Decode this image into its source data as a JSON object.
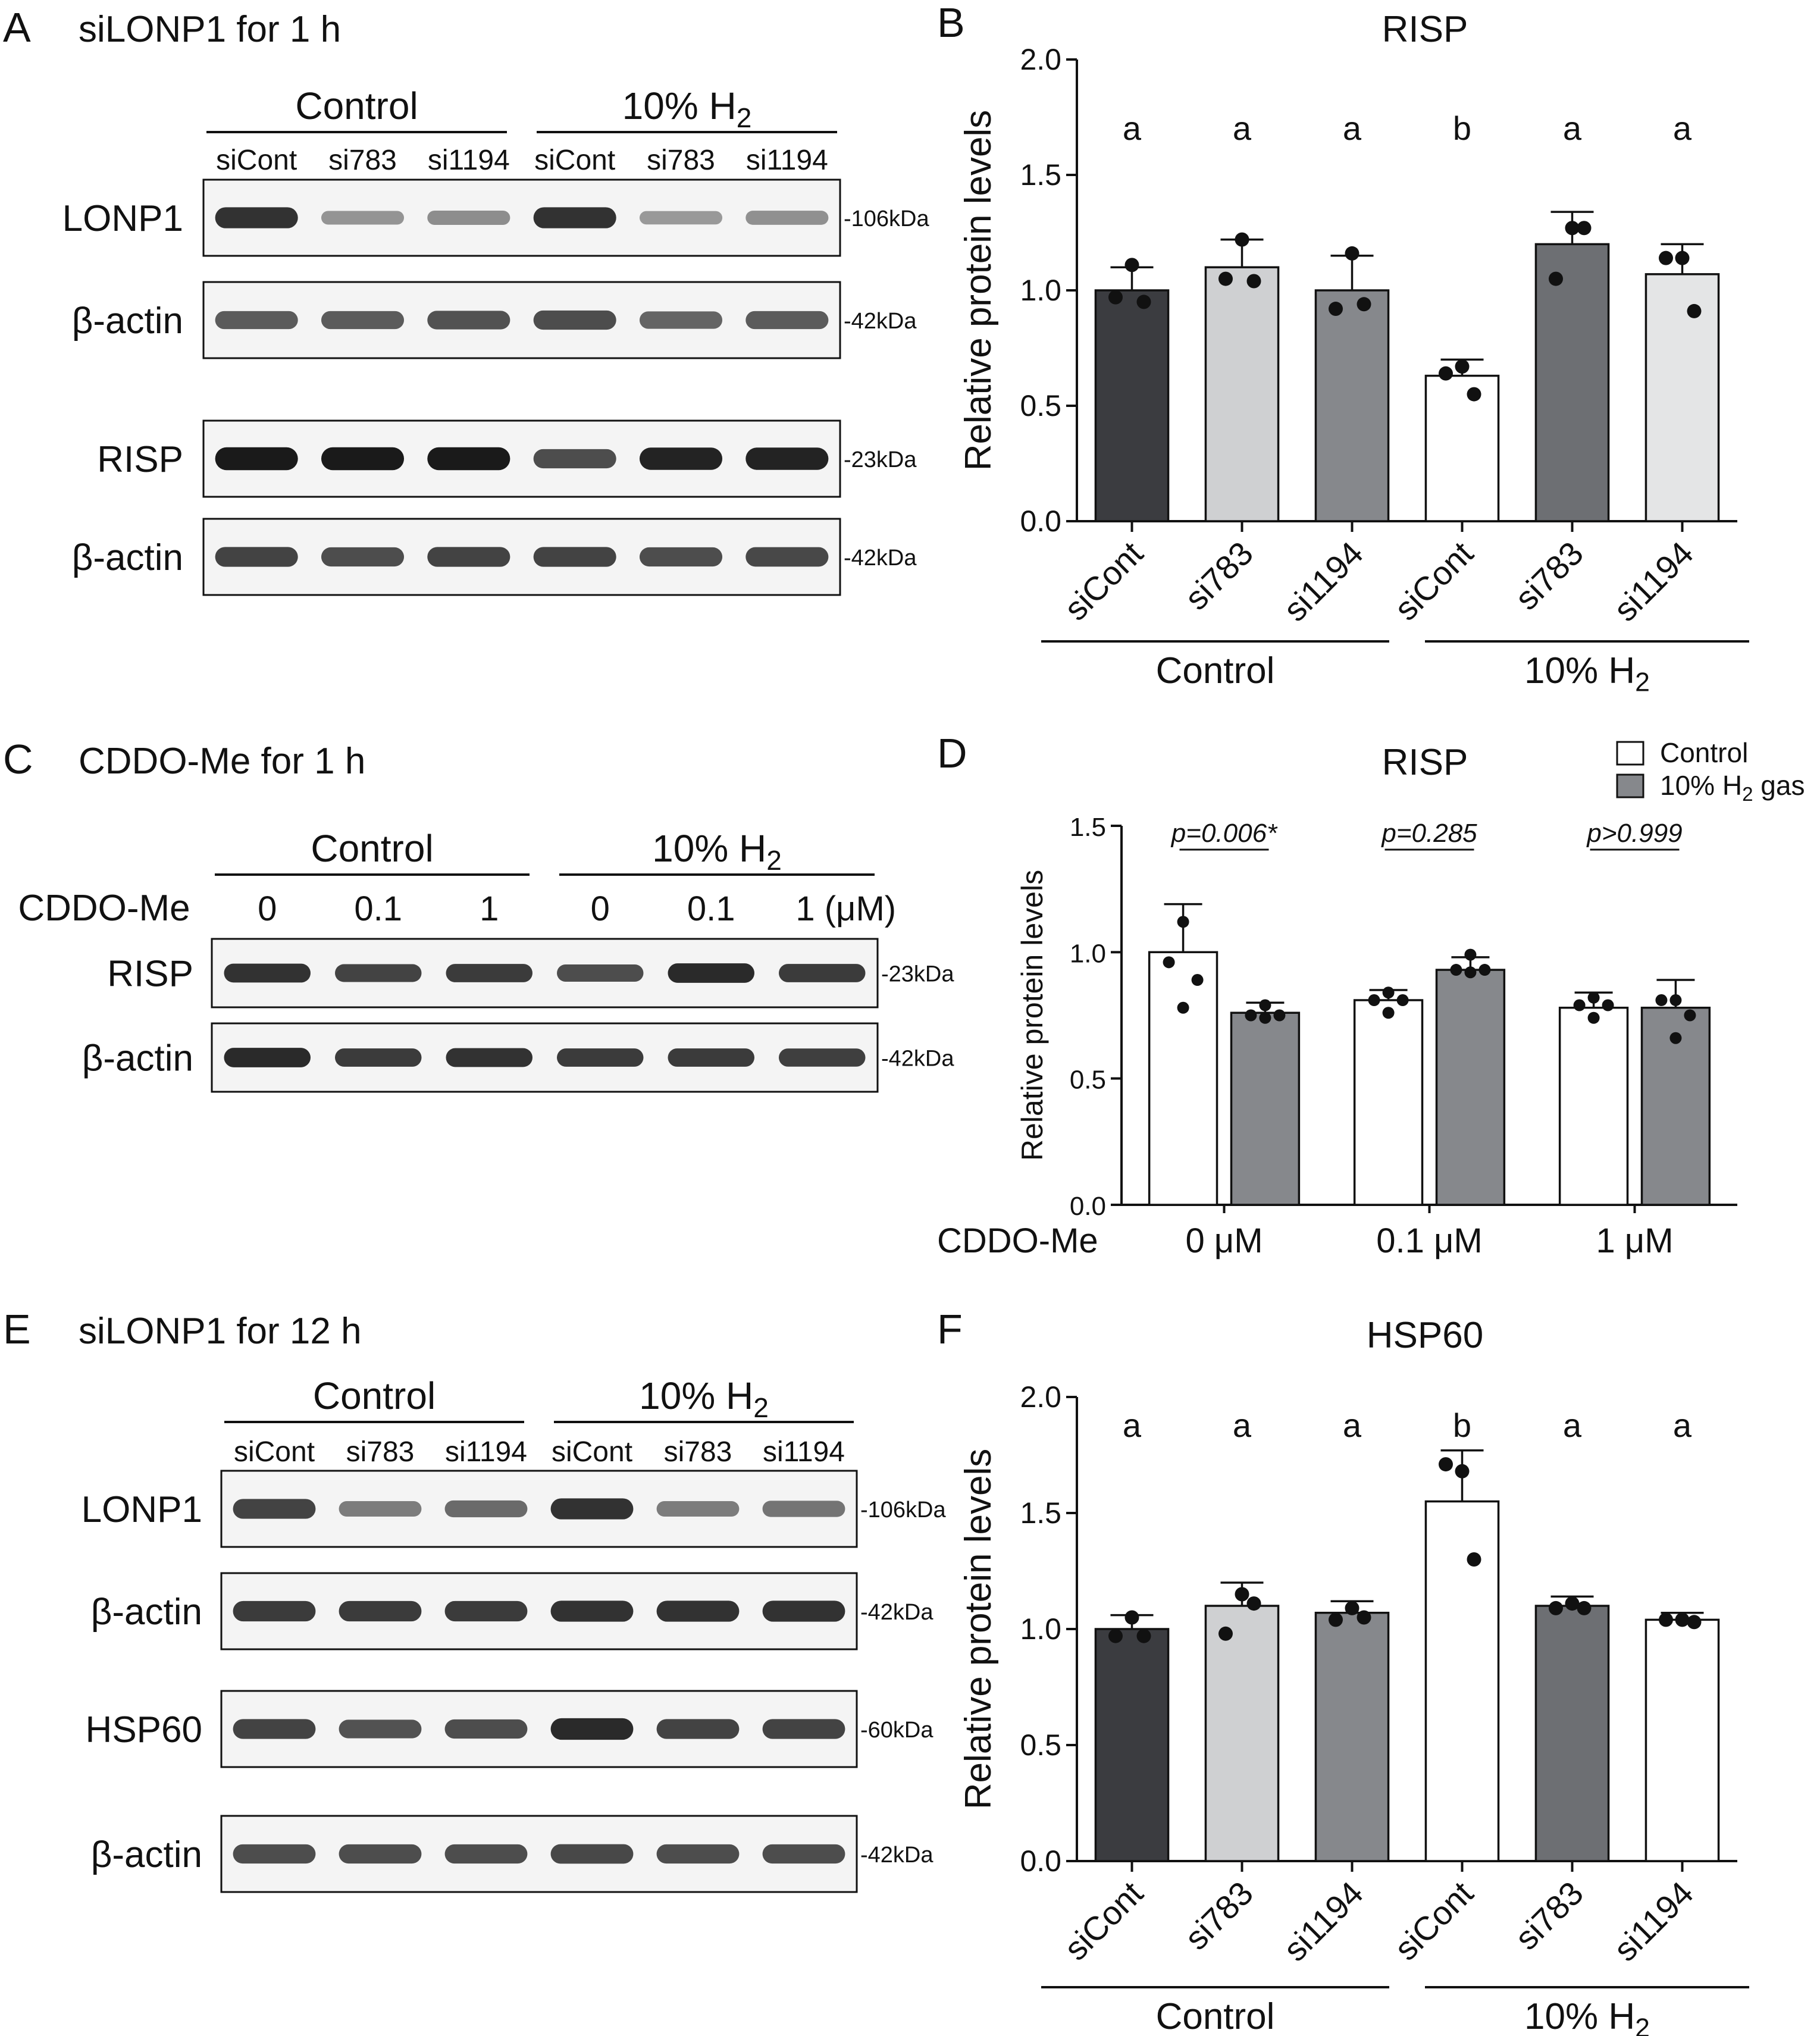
{
  "colors": {
    "black": "#111111",
    "bar_dark": "#3b3c40",
    "bar_light_gray": "#cfd0d2",
    "bar_mid_gray": "#86888c",
    "bar_white": "#ffffff",
    "bar_steel": "#6d6f73",
    "bar_pale": "#e4e5e6",
    "blot_bg": "#f4f4f4",
    "band": "#1a1a1a"
  },
  "panels": {
    "A": {
      "letter": "A",
      "title": "siLONP1 for 1 h",
      "groups": [
        "Control",
        "10% H",
        "2"
      ],
      "lanes": [
        "siCont",
        "si783",
        "si1194",
        "siCont",
        "si783",
        "si1194"
      ],
      "blots": [
        {
          "label": "LONP1",
          "marker": "-106kDa",
          "intensity": [
            0.85,
            0.25,
            0.3,
            0.85,
            0.22,
            0.28
          ]
        },
        {
          "label": "β-actin",
          "marker": "-42kDa",
          "intensity": [
            0.6,
            0.6,
            0.65,
            0.7,
            0.55,
            0.6
          ]
        },
        {
          "label": "RISP",
          "marker": "-23kDa",
          "intensity": [
            1.0,
            1.0,
            1.0,
            0.7,
            0.95,
            0.95
          ]
        },
        {
          "label": "β-actin",
          "marker": "-42kDa",
          "intensity": [
            0.75,
            0.7,
            0.75,
            0.75,
            0.7,
            0.72
          ]
        }
      ]
    },
    "C": {
      "letter": "C",
      "title": "CDDO-Me for 1 h",
      "groups": [
        "Control",
        "10% H",
        "2"
      ],
      "treatment_label": "CDDO-Me",
      "concentrations": [
        "0",
        "0.1",
        "1",
        "0",
        "0.1",
        "1 (μM)"
      ],
      "blots": [
        {
          "label": "RISP",
          "marker": "-23kDa",
          "intensity": [
            0.85,
            0.75,
            0.8,
            0.7,
            0.9,
            0.8
          ]
        },
        {
          "label": "β-actin",
          "marker": "-42kDa",
          "intensity": [
            0.9,
            0.8,
            0.85,
            0.8,
            0.8,
            0.78
          ]
        }
      ]
    },
    "E": {
      "letter": "E",
      "title": "siLONP1 for 12 h",
      "groups": [
        "Control",
        "10% H",
        "2"
      ],
      "lanes": [
        "siCont",
        "si783",
        "si1194",
        "siCont",
        "si783",
        "si1194"
      ],
      "blots": [
        {
          "label": "LONP1",
          "marker": "-106kDa",
          "intensity": [
            0.75,
            0.4,
            0.5,
            0.85,
            0.4,
            0.45
          ]
        },
        {
          "label": "β-actin",
          "marker": "-42kDa",
          "intensity": [
            0.8,
            0.8,
            0.8,
            0.85,
            0.85,
            0.85
          ]
        },
        {
          "label": "HSP60",
          "marker": "-60kDa",
          "intensity": [
            0.75,
            0.65,
            0.7,
            0.9,
            0.75,
            0.75
          ]
        },
        {
          "label": "β-actin",
          "marker": "-42kDa",
          "intensity": [
            0.7,
            0.7,
            0.7,
            0.72,
            0.7,
            0.7
          ]
        }
      ]
    }
  },
  "chart_data": [
    {
      "panel": "B",
      "type": "bar",
      "title": "RISP",
      "ylabel": "Relative protein levels",
      "ylim": [
        0,
        2.0
      ],
      "yticks": [
        "0.0",
        "0.5",
        "1.0",
        "1.5",
        "2.0"
      ],
      "categories": [
        "siCont",
        "si783",
        "si1194",
        "siCont",
        "si783",
        "si1194"
      ],
      "groups": [
        "Control",
        "10% H",
        "2"
      ],
      "values": [
        1.0,
        1.1,
        1.0,
        0.63,
        1.2,
        1.07
      ],
      "errors": [
        0.1,
        0.12,
        0.15,
        0.07,
        0.14,
        0.13
      ],
      "points": [
        [
          1.11,
          0.97,
          0.95
        ],
        [
          1.22,
          1.05,
          1.04
        ],
        [
          1.16,
          0.92,
          0.94
        ],
        [
          0.67,
          0.64,
          0.55
        ],
        [
          1.27,
          1.05,
          1.27
        ],
        [
          1.14,
          1.14,
          0.91
        ]
      ],
      "letters": [
        "a",
        "a",
        "a",
        "b",
        "a",
        "a"
      ],
      "colors": [
        "#3b3c40",
        "#cfd0d2",
        "#86888c",
        "#ffffff",
        "#6d6f73",
        "#e4e5e6"
      ]
    },
    {
      "panel": "D",
      "type": "bar",
      "title": "RISP",
      "ylabel": "Relative protein levels",
      "ylim": [
        0,
        1.5
      ],
      "yticks": [
        "0.0",
        "0.5",
        "1.0",
        "1.5"
      ],
      "xlabel": "CDDO-Me",
      "categories": [
        "0 μM",
        "0.1 μM",
        "1 μM"
      ],
      "legend": [
        "Control",
        "10% H",
        "2",
        " gas"
      ],
      "series": [
        {
          "color": "#ffffff",
          "values": [
            1.0,
            0.81,
            0.78
          ],
          "errors": [
            0.19,
            0.04,
            0.06
          ],
          "points": [
            [
              1.12,
              0.96,
              0.89,
              0.78
            ],
            [
              0.84,
              0.81,
              0.81,
              0.76
            ],
            [
              0.82,
              0.79,
              0.79,
              0.74
            ]
          ]
        },
        {
          "color": "#86888c",
          "values": [
            0.76,
            0.93,
            0.78
          ],
          "errors": [
            0.04,
            0.05,
            0.11
          ],
          "points": [
            [
              0.79,
              0.75,
              0.75,
              0.74
            ],
            [
              0.99,
              0.93,
              0.93,
              0.92
            ],
            [
              0.81,
              0.81,
              0.75,
              0.66
            ]
          ]
        }
      ],
      "pvalues": [
        "p=0.006*",
        "p=0.285",
        "p>0.999"
      ]
    },
    {
      "panel": "F",
      "type": "bar",
      "title": "HSP60",
      "ylabel": "Relative protein levels",
      "ylim": [
        0,
        2.0
      ],
      "yticks": [
        "0.0",
        "0.5",
        "1.0",
        "1.5",
        "2.0"
      ],
      "categories": [
        "siCont",
        "si783",
        "si1194",
        "siCont",
        "si783",
        "si1194"
      ],
      "groups": [
        "Control",
        "10% H",
        "2"
      ],
      "values": [
        1.0,
        1.1,
        1.07,
        1.55,
        1.1,
        1.04
      ],
      "errors": [
        0.06,
        0.1,
        0.05,
        0.22,
        0.04,
        0.03
      ],
      "points": [
        [
          1.05,
          0.97,
          0.97
        ],
        [
          1.15,
          0.98,
          1.11
        ],
        [
          1.09,
          1.04,
          1.05
        ],
        [
          1.68,
          1.71,
          1.3
        ],
        [
          1.11,
          1.09,
          1.09
        ],
        [
          1.04,
          1.04,
          1.03
        ]
      ],
      "letters": [
        "a",
        "a",
        "a",
        "b",
        "a",
        "a"
      ],
      "colors": [
        "#3b3c40",
        "#cfd0d2",
        "#86888c",
        "#ffffff",
        "#6d6f73",
        "#ffffff"
      ]
    }
  ]
}
